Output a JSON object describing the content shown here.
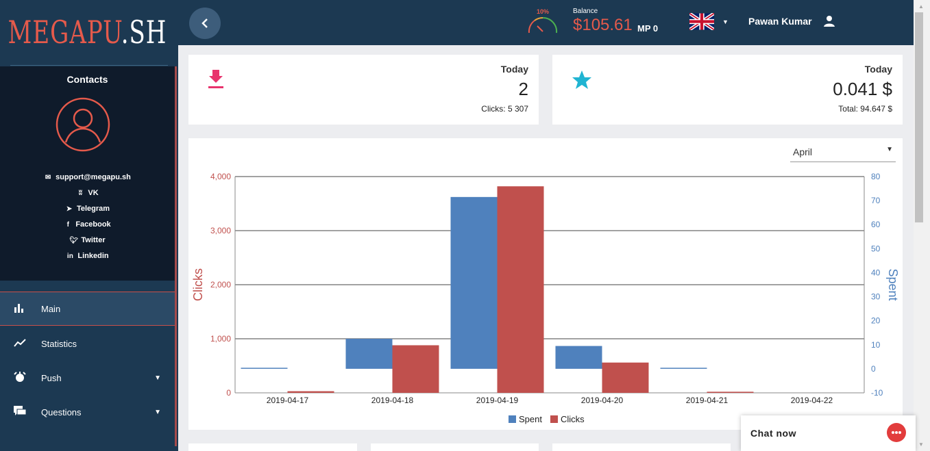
{
  "app": {
    "logo_text_left": "MEGAPU",
    "logo_text_right": ".SH"
  },
  "contacts": {
    "title": "Contacts",
    "links": [
      {
        "icon": "envelope-icon",
        "label": "support@megapu.sh"
      },
      {
        "icon": "vk-icon",
        "label": "VK"
      },
      {
        "icon": "telegram-icon",
        "label": "Telegram"
      },
      {
        "icon": "facebook-icon",
        "label": "Facebook"
      },
      {
        "icon": "twitter-icon",
        "label": "Twitter"
      },
      {
        "icon": "linkedin-icon",
        "label": "Linkedin"
      }
    ]
  },
  "nav": {
    "items": [
      {
        "label": "Main",
        "icon": "bar-chart-icon",
        "active": true
      },
      {
        "label": "Statistics",
        "icon": "trend-line-icon"
      },
      {
        "label": "Push",
        "icon": "alarm-icon",
        "has_submenu": true
      },
      {
        "label": "Questions",
        "icon": "chat-bubbles-icon",
        "has_submenu": true
      }
    ]
  },
  "header": {
    "gauge_percent": "10%",
    "balance_label": "Balance",
    "balance_value": "$105.61",
    "mp_value": "MP 0",
    "language_flag": "uk-flag-icon",
    "user_name": "Pawan Kumar"
  },
  "stats": {
    "clicks_card": {
      "period": "Today",
      "value": "2",
      "sub": "Clicks: 5 307",
      "icon": "download-icon",
      "color": "#e8336d"
    },
    "spent_card": {
      "period": "Today",
      "value": "0.041 $",
      "sub": "Total: 94.647 $",
      "icon": "star-icon",
      "color": "#20b4d2"
    }
  },
  "month_select": {
    "value": "April"
  },
  "chat": {
    "label": "Chat now"
  },
  "colors": {
    "spent": "#4f81bd",
    "clicks": "#c0504d",
    "sidebar": "#1c3952",
    "accent": "#e55a4b"
  },
  "chart_data": {
    "type": "bar",
    "categories": [
      "2019-04-17",
      "2019-04-18",
      "2019-04-19",
      "2019-04-20",
      "2019-04-21",
      "2019-04-22"
    ],
    "series": [
      {
        "name": "Spent",
        "axis": "right",
        "values": [
          0.4,
          12.5,
          71.5,
          9.5,
          0.1,
          0
        ]
      },
      {
        "name": "Clicks",
        "axis": "left",
        "values": [
          30,
          880,
          3820,
          560,
          20,
          0
        ]
      }
    ],
    "ylabel": "Clicks",
    "y2label": "Spent",
    "ylim": [
      0,
      4000
    ],
    "y2lim": [
      -10,
      80
    ],
    "yticks": [
      "0",
      "1,000",
      "2,000",
      "3,000",
      "4,000"
    ],
    "y2ticks": [
      "-10",
      "0",
      "10",
      "20",
      "30",
      "40",
      "50",
      "60",
      "70",
      "80"
    ],
    "legend": [
      "Spent",
      "Clicks"
    ],
    "legend_position": "bottom",
    "grid": true
  }
}
